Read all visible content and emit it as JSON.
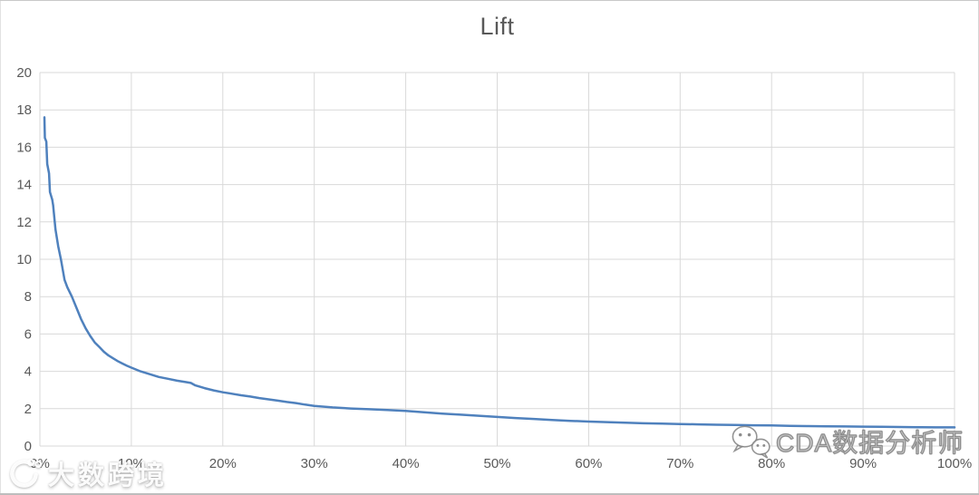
{
  "chart_data": {
    "type": "line",
    "title": "Lift",
    "xlabel": "",
    "ylabel": "",
    "xlim": [
      0,
      100
    ],
    "ylim": [
      0,
      20
    ],
    "x_tick_labels": [
      "0%",
      "10%",
      "20%",
      "30%",
      "40%",
      "50%",
      "60%",
      "70%",
      "80%",
      "90%",
      "100%"
    ],
    "x_tick_values": [
      0,
      10,
      20,
      30,
      40,
      50,
      60,
      70,
      80,
      90,
      100
    ],
    "y_tick_values": [
      0,
      2,
      4,
      6,
      8,
      10,
      12,
      14,
      16,
      18,
      20
    ],
    "grid": "both",
    "legend": "none",
    "series": [
      {
        "name": "Lift",
        "points": [
          [
            0.5,
            17.6
          ],
          [
            0.55,
            16.5
          ],
          [
            0.7,
            16.3
          ],
          [
            0.8,
            15.1
          ],
          [
            1.0,
            14.6
          ],
          [
            1.1,
            13.6
          ],
          [
            1.35,
            13.2
          ],
          [
            1.45,
            12.9
          ],
          [
            1.7,
            11.6
          ],
          [
            2.0,
            10.7
          ],
          [
            2.3,
            10.0
          ],
          [
            2.7,
            8.9
          ],
          [
            3.0,
            8.5
          ],
          [
            3.5,
            8.0
          ],
          [
            4.0,
            7.4
          ],
          [
            4.5,
            6.8
          ],
          [
            5.0,
            6.3
          ],
          [
            5.5,
            5.9
          ],
          [
            6.0,
            5.55
          ],
          [
            6.5,
            5.3
          ],
          [
            7.0,
            5.05
          ],
          [
            7.5,
            4.85
          ],
          [
            8.0,
            4.7
          ],
          [
            8.5,
            4.55
          ],
          [
            9.0,
            4.42
          ],
          [
            9.5,
            4.3
          ],
          [
            10,
            4.2
          ],
          [
            11,
            4.0
          ],
          [
            12,
            3.85
          ],
          [
            13,
            3.7
          ],
          [
            14,
            3.6
          ],
          [
            15,
            3.5
          ],
          [
            16,
            3.42
          ],
          [
            16.5,
            3.38
          ],
          [
            17,
            3.25
          ],
          [
            18,
            3.1
          ],
          [
            19,
            2.98
          ],
          [
            20,
            2.88
          ],
          [
            21,
            2.8
          ],
          [
            22,
            2.72
          ],
          [
            23,
            2.65
          ],
          [
            24,
            2.57
          ],
          [
            25,
            2.5
          ],
          [
            26,
            2.43
          ],
          [
            27,
            2.36
          ],
          [
            28,
            2.3
          ],
          [
            29,
            2.22
          ],
          [
            30,
            2.15
          ],
          [
            32,
            2.07
          ],
          [
            34,
            2.01
          ],
          [
            36,
            1.97
          ],
          [
            38,
            1.93
          ],
          [
            40,
            1.88
          ],
          [
            42,
            1.81
          ],
          [
            44,
            1.74
          ],
          [
            46,
            1.68
          ],
          [
            48,
            1.62
          ],
          [
            50,
            1.56
          ],
          [
            52,
            1.5
          ],
          [
            54,
            1.45
          ],
          [
            56,
            1.4
          ],
          [
            58,
            1.35
          ],
          [
            60,
            1.31
          ],
          [
            62,
            1.28
          ],
          [
            64,
            1.25
          ],
          [
            66,
            1.22
          ],
          [
            68,
            1.2
          ],
          [
            70,
            1.18
          ],
          [
            72,
            1.16
          ],
          [
            74,
            1.14
          ],
          [
            76,
            1.13
          ],
          [
            78,
            1.11
          ],
          [
            80,
            1.1
          ],
          [
            82,
            1.08
          ],
          [
            84,
            1.07
          ],
          [
            86,
            1.06
          ],
          [
            88,
            1.05
          ],
          [
            90,
            1.04
          ],
          [
            92,
            1.03
          ],
          [
            94,
            1.02
          ],
          [
            96,
            1.01
          ],
          [
            98,
            1.0
          ],
          [
            100,
            1.0
          ]
        ]
      }
    ]
  },
  "watermarks": {
    "bottom_left": "大数跨境",
    "bottom_right": "CDA数据分析师"
  },
  "colors": {
    "line": "#4f81bd",
    "gridline": "#d9d9d9",
    "axis_text": "#595959",
    "title_text": "#595959"
  }
}
